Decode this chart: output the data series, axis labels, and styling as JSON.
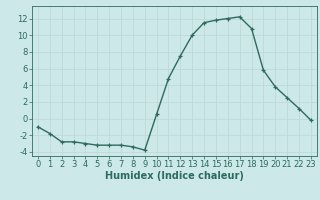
{
  "x": [
    0,
    1,
    2,
    3,
    4,
    5,
    6,
    7,
    8,
    9,
    10,
    11,
    12,
    13,
    14,
    15,
    16,
    17,
    18,
    19,
    20,
    21,
    22,
    23
  ],
  "y": [
    -1,
    -1.8,
    -2.8,
    -2.8,
    -3.0,
    -3.2,
    -3.2,
    -3.2,
    -3.4,
    -3.8,
    0.5,
    4.8,
    7.5,
    10.0,
    11.5,
    11.8,
    12.0,
    12.2,
    10.8,
    5.8,
    3.8,
    2.5,
    1.2,
    -0.2
  ],
  "line_color": "#2e6b5e",
  "bg_color": "#cce8e8",
  "grid_color": "#c0d8d8",
  "xlabel": "Humidex (Indice chaleur)",
  "xlim": [
    -0.5,
    23.5
  ],
  "ylim": [
    -4.5,
    13.5
  ],
  "yticks": [
    -4,
    -2,
    0,
    2,
    4,
    6,
    8,
    10,
    12
  ],
  "xticks": [
    0,
    1,
    2,
    3,
    4,
    5,
    6,
    7,
    8,
    9,
    10,
    11,
    12,
    13,
    14,
    15,
    16,
    17,
    18,
    19,
    20,
    21,
    22,
    23
  ],
  "marker": "+",
  "markersize": 3.5,
  "linewidth": 1.0,
  "xlabel_fontsize": 7,
  "tick_fontsize": 6
}
